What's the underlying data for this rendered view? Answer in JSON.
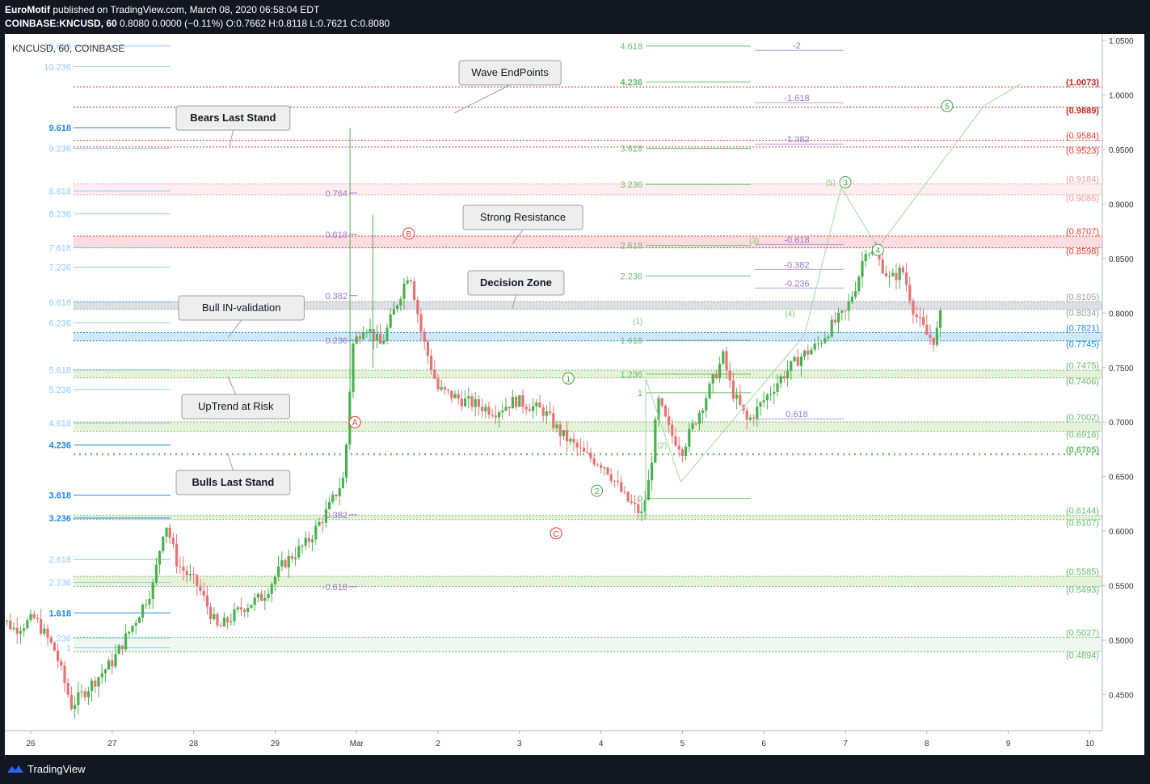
{
  "header": {
    "author": "EuroMotif",
    "published": "published on TradingView.com, March 08, 2020 06:58:04 EDT",
    "symbol": "COINBASE:KNCUSD, 60",
    "ohlc": "0.8080 0.0000 (−0.11%) O:0.7662 H:0.8118 L:0.7621 C:0.8080"
  },
  "chart_header": "KNCUSD, 60, COINBASE",
  "footer": {
    "brand": "TradingView"
  },
  "colors": {
    "up": "#26a69a",
    "down": "#ef5350",
    "background": "#ffffff",
    "accent_red": "#c62828",
    "support_green": "#388e3c",
    "bars_up": "#4caf50",
    "bars_down": "#e57373"
  },
  "annotations": {
    "wave_endpoints": "Wave EndPoints",
    "bears_last_stand": "Bears Last Stand",
    "strong_resistance": "Strong Resistance",
    "decision_zone": "Decision Zone",
    "bull_invalidation": "Bull IN-validation",
    "uptrend_at_risk": "UpTrend at Risk",
    "bulls_last_stand": "Bulls Last Stand"
  },
  "chart_data": {
    "type": "candlestick",
    "title": "KNCUSD, 60, COINBASE",
    "x_ticks": [
      "26",
      "27",
      "28",
      "29",
      "Mar",
      "2",
      "3",
      "4",
      "5",
      "6",
      "7",
      "8",
      "9",
      "10"
    ],
    "y_ticks": [
      "1.0500",
      "1.0000",
      "0.9500",
      "0.9000",
      "0.8500",
      "0.8000",
      "0.7500",
      "0.7000",
      "0.6500",
      "0.6000",
      "0.5500",
      "0.5000",
      "0.4500"
    ],
    "ylim": [
      0.417,
      1.056
    ],
    "path_close": [
      {
        "d": 25.5,
        "p": 0.53
      },
      {
        "d": 25.8,
        "p": 0.51
      },
      {
        "d": 26.05,
        "p": 0.52
      },
      {
        "d": 26.3,
        "p": 0.49
      },
      {
        "d": 26.5,
        "p": 0.44
      },
      {
        "d": 26.75,
        "p": 0.46
      },
      {
        "d": 27.0,
        "p": 0.48
      },
      {
        "d": 27.3,
        "p": 0.52
      },
      {
        "d": 27.5,
        "p": 0.55
      },
      {
        "d": 27.65,
        "p": 0.61
      },
      {
        "d": 27.8,
        "p": 0.57
      },
      {
        "d": 28.05,
        "p": 0.55
      },
      {
        "d": 28.3,
        "p": 0.51
      },
      {
        "d": 28.6,
        "p": 0.53
      },
      {
        "d": 28.85,
        "p": 0.54
      },
      {
        "d": 29.1,
        "p": 0.57
      },
      {
        "d": 29.4,
        "p": 0.59
      },
      {
        "d": 29.65,
        "p": 0.62
      },
      {
        "d": 29.85,
        "p": 0.65
      },
      {
        "d": 29.95,
        "p": 0.77
      },
      {
        "d": 30.1,
        "p": 0.79
      },
      {
        "d": 30.3,
        "p": 0.77
      },
      {
        "d": 30.5,
        "p": 0.81
      },
      {
        "d": 30.65,
        "p": 0.84
      },
      {
        "d": 30.8,
        "p": 0.78
      },
      {
        "d": 31.0,
        "p": 0.73
      },
      {
        "d": 31.3,
        "p": 0.72
      },
      {
        "d": 31.7,
        "p": 0.71
      },
      {
        "d": 31.95,
        "p": 0.72
      },
      {
        "d": 32.3,
        "p": 0.71
      },
      {
        "d": 32.5,
        "p": 0.69
      },
      {
        "d": 32.8,
        "p": 0.67
      },
      {
        "d": 33.05,
        "p": 0.66
      },
      {
        "d": 33.3,
        "p": 0.63
      },
      {
        "d": 33.5,
        "p": 0.615
      },
      {
        "d": 33.6,
        "p": 0.65
      },
      {
        "d": 33.7,
        "p": 0.72
      },
      {
        "d": 33.85,
        "p": 0.69
      },
      {
        "d": 34.0,
        "p": 0.675
      },
      {
        "d": 34.15,
        "p": 0.7
      },
      {
        "d": 34.3,
        "p": 0.725
      },
      {
        "d": 34.5,
        "p": 0.76
      },
      {
        "d": 34.6,
        "p": 0.73
      },
      {
        "d": 34.8,
        "p": 0.7
      },
      {
        "d": 35.0,
        "p": 0.72
      },
      {
        "d": 35.2,
        "p": 0.74
      },
      {
        "d": 35.45,
        "p": 0.76
      },
      {
        "d": 35.65,
        "p": 0.77
      },
      {
        "d": 35.85,
        "p": 0.79
      },
      {
        "d": 36.0,
        "p": 0.8
      },
      {
        "d": 36.15,
        "p": 0.83
      },
      {
        "d": 36.25,
        "p": 0.86
      },
      {
        "d": 36.4,
        "p": 0.85
      },
      {
        "d": 36.55,
        "p": 0.83
      },
      {
        "d": 36.7,
        "p": 0.84
      },
      {
        "d": 36.85,
        "p": 0.8
      },
      {
        "d": 37.0,
        "p": 0.78
      },
      {
        "d": 37.1,
        "p": 0.775
      },
      {
        "d": 37.2,
        "p": 0.808
      }
    ],
    "hlines": [
      {
        "value": 1.0073,
        "label": "(1.0073)"
      },
      {
        "value": 0.9889,
        "label": "(0.9889)"
      },
      {
        "value": 0.9584,
        "label": "(0.9584)"
      },
      {
        "value": 0.9523,
        "label": "(0.9523)"
      },
      {
        "value": 0.9184,
        "label": "(0.9184)"
      },
      {
        "value": 0.9086,
        "label": "(0.9086)"
      },
      {
        "value": 0.8707,
        "label": "(0.8707)"
      },
      {
        "value": 0.8598,
        "label": "(0.8598)"
      },
      {
        "value": 0.8105,
        "label": "(0.8105)"
      },
      {
        "value": 0.8034,
        "label": "(0.8034)"
      },
      {
        "value": 0.7821,
        "label": "(0.7821)"
      },
      {
        "value": 0.7745,
        "label": "(0.7745)"
      },
      {
        "value": 0.7475,
        "label": "(0.7475)"
      },
      {
        "value": 0.7406,
        "label": "(0.7406)"
      },
      {
        "value": 0.7002,
        "label": "(0.7002)"
      },
      {
        "value": 0.6916,
        "label": "(0.6916)"
      },
      {
        "value": 0.6705,
        "label": "(0.6705)"
      },
      {
        "value": 0.6144,
        "label": "(0.6144)"
      },
      {
        "value": 0.6107,
        "label": "(0.6107)"
      },
      {
        "value": 0.5585,
        "label": "(0.5585)"
      },
      {
        "value": 0.5493,
        "label": "(0.5493)"
      },
      {
        "value": 0.5027,
        "label": "(0.5027)"
      },
      {
        "value": 0.4894,
        "label": "(0.4894)"
      }
    ],
    "fib_left": [
      "10.618",
      "10.236",
      "9.618",
      "9.236",
      "8.618",
      "8.236",
      "7.618",
      "7.236",
      "6.618",
      "6.236",
      "5.618",
      "5.236",
      "4.618",
      "4.236",
      "3.618",
      "3.236",
      "2.618",
      "2.236",
      "1.618",
      "1.236",
      "1"
    ],
    "fib_mid": [
      "0.764",
      "0.618",
      "0.382",
      "0.236",
      "-0.382",
      "-0.618"
    ],
    "fib_ext": [
      "4.618",
      "4.236",
      "3.618",
      "3.236",
      "2.618",
      "2.236",
      "1.618",
      "1.236",
      "1",
      "0"
    ],
    "fib_neg": [
      "-2",
      "-1.618",
      "-1.382",
      "-0.618",
      "-0.382",
      "-0.236",
      "0.618"
    ],
    "wave_labels": [
      "A",
      "B",
      "C",
      "1",
      "2",
      "3",
      "4",
      "5",
      "(1)",
      "(2)",
      "(3)",
      "(4)",
      "(5)",
      "(3)"
    ]
  }
}
